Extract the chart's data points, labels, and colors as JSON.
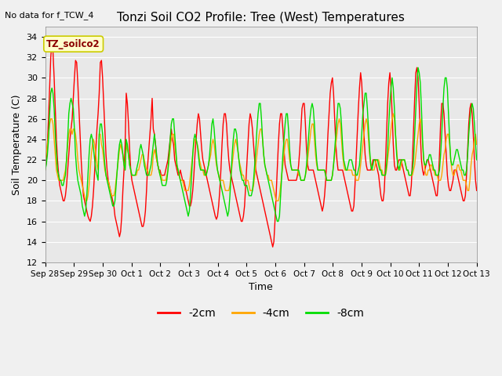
{
  "title": "Tonzi Soil CO2 Profile: Tree (West) Temperatures",
  "no_data_label": "No data for f_TCW_4",
  "ylabel": "Soil Temperature (C)",
  "xlabel": "Time",
  "legend_label": "TZ_soilco2",
  "ylim": [
    12,
    35
  ],
  "yticks": [
    12,
    14,
    16,
    18,
    20,
    22,
    24,
    26,
    28,
    30,
    32,
    34
  ],
  "bg_color": "#e8e8e8",
  "plot_bg": "#ebebeb",
  "line_colors": {
    "-2cm": "#ff0000",
    "-4cm": "#ffa500",
    "-8cm": "#00dd00"
  },
  "x_tick_labels": [
    "Sep 28",
    "Sep 29",
    "Sep 30",
    "Oct 1",
    "Oct 2",
    "Oct 3",
    "Oct 4",
    "Oct 5",
    "Oct 6",
    "Oct 7",
    "Oct 8",
    "Oct 9",
    "Oct 10",
    "Oct 11",
    "Oct 12",
    "Oct 13"
  ],
  "x_tick_positions": [
    0,
    1,
    2,
    3,
    4,
    5,
    6,
    7,
    8,
    9,
    10,
    11,
    12,
    13,
    14,
    15
  ],
  "num_days": 15,
  "samples_per_day": 24,
  "series_2cm": [
    21.0,
    21.8,
    23.5,
    26.0,
    29.0,
    32.0,
    33.5,
    32.5,
    30.0,
    27.0,
    24.0,
    22.0,
    20.5,
    19.5,
    19.0,
    18.5,
    18.0,
    18.0,
    18.5,
    19.5,
    21.0,
    22.5,
    24.0,
    25.0,
    26.0,
    28.0,
    30.0,
    31.7,
    31.5,
    29.5,
    27.0,
    24.5,
    22.0,
    20.0,
    18.5,
    18.0,
    17.5,
    17.0,
    16.5,
    16.2,
    16.0,
    16.5,
    17.5,
    19.0,
    21.0,
    23.0,
    25.0,
    26.5,
    28.5,
    31.5,
    31.7,
    30.0,
    27.5,
    25.0,
    22.5,
    21.0,
    20.0,
    19.5,
    19.0,
    18.5,
    18.0,
    17.5,
    16.5,
    16.0,
    15.5,
    15.0,
    14.5,
    15.0,
    16.5,
    19.0,
    21.0,
    23.5,
    28.5,
    27.5,
    25.5,
    23.0,
    21.0,
    20.0,
    19.5,
    19.0,
    18.5,
    18.0,
    17.5,
    17.0,
    16.5,
    16.0,
    15.5,
    15.5,
    16.0,
    17.0,
    19.0,
    21.5,
    23.0,
    24.5,
    26.0,
    28.0,
    25.0,
    24.5,
    23.5,
    22.0,
    21.5,
    21.0,
    21.0,
    20.5,
    20.5,
    20.5,
    20.5,
    21.0,
    21.5,
    22.0,
    23.0,
    24.0,
    25.0,
    24.0,
    23.5,
    22.0,
    21.5,
    21.0,
    20.5,
    20.5,
    21.0,
    20.5,
    20.0,
    20.0,
    19.5,
    19.0,
    18.5,
    18.0,
    17.5,
    17.5,
    18.0,
    19.0,
    20.5,
    22.5,
    24.0,
    25.5,
    26.5,
    26.0,
    24.5,
    23.0,
    22.0,
    21.5,
    21.0,
    20.5,
    20.0,
    19.5,
    19.0,
    18.5,
    18.0,
    17.5,
    17.0,
    16.5,
    16.2,
    16.5,
    17.5,
    19.0,
    21.0,
    23.5,
    25.5,
    26.5,
    26.5,
    25.5,
    23.5,
    22.0,
    21.0,
    20.5,
    20.0,
    19.5,
    19.0,
    18.5,
    18.0,
    17.5,
    17.0,
    16.5,
    16.0,
    16.0,
    16.5,
    17.5,
    19.5,
    21.5,
    23.5,
    25.5,
    26.5,
    26.0,
    25.0,
    23.5,
    22.0,
    21.0,
    20.5,
    20.0,
    19.5,
    19.0,
    18.5,
    18.0,
    17.5,
    17.0,
    16.5,
    16.0,
    15.5,
    15.0,
    14.5,
    14.0,
    13.5,
    14.0,
    16.0,
    18.5,
    21.0,
    23.5,
    25.5,
    26.5,
    26.5,
    25.0,
    23.0,
    21.5,
    21.0,
    20.5,
    20.0,
    20.0,
    20.0,
    20.0,
    20.0,
    20.0,
    20.0,
    20.0,
    20.5,
    21.5,
    23.0,
    25.0,
    27.0,
    27.5,
    27.5,
    25.5,
    23.0,
    21.5,
    21.0,
    21.0,
    21.0,
    21.0,
    21.0,
    20.5,
    20.0,
    19.5,
    19.0,
    18.5,
    18.0,
    17.5,
    17.0,
    17.5,
    18.5,
    20.0,
    22.0,
    24.5,
    26.5,
    28.5,
    29.5,
    30.0,
    28.5,
    26.0,
    23.5,
    22.0,
    21.0,
    21.0,
    21.0,
    21.0,
    21.0,
    20.5,
    20.0,
    19.5,
    19.0,
    18.5,
    18.0,
    17.5,
    17.0,
    17.0,
    17.5,
    19.5,
    22.0,
    24.5,
    27.0,
    29.0,
    30.5,
    29.5,
    27.0,
    24.5,
    22.5,
    21.5,
    21.0,
    21.0,
    21.0,
    21.0,
    21.5,
    22.0,
    22.0,
    22.0,
    21.5,
    21.0,
    20.5,
    19.5,
    18.5,
    18.0,
    18.0,
    19.0,
    21.5,
    24.5,
    27.5,
    29.5,
    30.5,
    29.0,
    26.5,
    23.5,
    21.5,
    21.0,
    21.0,
    21.5,
    22.0,
    22.0,
    22.0,
    21.5,
    21.0,
    20.5,
    20.0,
    19.5,
    19.0,
    18.5,
    18.5,
    19.5,
    22.0,
    25.0,
    28.0,
    30.5,
    31.0,
    30.0,
    27.5,
    24.5,
    22.0,
    21.0,
    20.5,
    21.0,
    21.5,
    22.0,
    22.0,
    21.5,
    21.0,
    20.5,
    20.0,
    19.5,
    19.0,
    18.5,
    18.5,
    20.0,
    22.5,
    25.5,
    27.5,
    27.5,
    26.5,
    24.5,
    22.5,
    20.5,
    19.5,
    19.0,
    19.0,
    19.5,
    20.0,
    21.0,
    21.0,
    21.0,
    20.5,
    20.0,
    19.5,
    19.0,
    18.5,
    18.0,
    18.0,
    18.5,
    20.5,
    23.0,
    25.5,
    27.0,
    27.5,
    26.5,
    24.5,
    22.0,
    20.0,
    19.0
  ],
  "series_4cm": [
    22.0,
    22.5,
    23.5,
    24.5,
    25.5,
    26.0,
    26.0,
    25.5,
    24.0,
    22.5,
    21.0,
    20.5,
    20.0,
    20.0,
    20.0,
    20.0,
    20.0,
    20.5,
    21.0,
    22.0,
    23.5,
    24.5,
    25.0,
    25.0,
    24.5,
    25.0,
    25.0,
    24.5,
    23.5,
    22.0,
    21.0,
    20.5,
    20.0,
    19.5,
    19.0,
    18.5,
    18.0,
    18.0,
    18.5,
    19.5,
    21.0,
    22.5,
    23.5,
    24.0,
    23.5,
    22.5,
    21.5,
    21.0,
    24.5,
    24.5,
    23.5,
    23.0,
    22.0,
    21.0,
    20.5,
    20.0,
    20.0,
    19.5,
    19.0,
    18.5,
    18.5,
    18.5,
    19.0,
    20.0,
    21.0,
    22.0,
    23.0,
    23.5,
    23.0,
    22.5,
    21.5,
    21.0,
    23.5,
    23.0,
    22.5,
    21.5,
    21.0,
    20.5,
    20.5,
    20.5,
    20.5,
    20.5,
    21.0,
    21.0,
    21.5,
    22.0,
    22.5,
    22.5,
    22.0,
    21.5,
    21.0,
    21.0,
    20.5,
    20.5,
    20.5,
    21.0,
    22.5,
    23.0,
    22.5,
    22.0,
    21.5,
    21.0,
    20.5,
    20.5,
    20.0,
    20.0,
    20.0,
    20.0,
    20.5,
    21.0,
    22.0,
    23.0,
    24.0,
    24.5,
    24.5,
    23.5,
    22.5,
    21.5,
    21.0,
    20.5,
    20.0,
    20.0,
    20.0,
    19.5,
    19.0,
    19.0,
    19.0,
    19.0,
    19.5,
    20.5,
    21.5,
    22.5,
    23.5,
    24.0,
    24.0,
    23.5,
    23.0,
    22.0,
    21.5,
    21.0,
    21.0,
    20.5,
    20.5,
    20.5,
    21.0,
    21.5,
    22.0,
    22.5,
    23.5,
    24.0,
    23.5,
    22.5,
    21.5,
    21.0,
    20.5,
    20.0,
    20.0,
    20.0,
    20.0,
    19.5,
    19.0,
    19.0,
    19.0,
    19.0,
    19.5,
    20.5,
    21.5,
    22.5,
    23.5,
    24.0,
    23.5,
    23.0,
    22.0,
    21.5,
    21.0,
    20.5,
    20.5,
    20.0,
    20.0,
    20.0,
    20.0,
    19.5,
    19.0,
    19.0,
    19.0,
    19.5,
    20.5,
    21.5,
    22.5,
    23.5,
    24.5,
    25.0,
    25.0,
    24.0,
    22.5,
    21.5,
    21.0,
    20.5,
    20.5,
    20.0,
    20.0,
    20.0,
    19.5,
    19.0,
    18.5,
    18.0,
    18.0,
    18.0,
    18.5,
    19.5,
    20.5,
    21.5,
    22.5,
    23.5,
    24.0,
    24.0,
    23.0,
    22.0,
    21.5,
    21.0,
    21.0,
    21.0,
    21.0,
    21.0,
    21.0,
    20.5,
    20.5,
    20.0,
    20.0,
    20.0,
    20.0,
    20.5,
    21.0,
    22.0,
    23.0,
    24.0,
    25.0,
    25.5,
    25.5,
    24.0,
    22.5,
    21.5,
    21.0,
    21.0,
    21.0,
    21.0,
    21.0,
    21.0,
    21.0,
    20.5,
    20.0,
    20.0,
    20.0,
    20.0,
    20.0,
    20.5,
    21.5,
    22.5,
    23.5,
    24.5,
    25.5,
    26.0,
    25.5,
    24.0,
    22.5,
    21.5,
    21.0,
    21.0,
    21.0,
    21.0,
    21.0,
    21.0,
    21.0,
    20.5,
    20.5,
    20.5,
    20.0,
    20.0,
    20.0,
    20.5,
    21.5,
    22.5,
    23.5,
    24.5,
    25.5,
    26.0,
    25.5,
    24.0,
    22.5,
    21.5,
    21.0,
    21.0,
    21.0,
    21.5,
    22.0,
    22.0,
    22.0,
    21.5,
    21.0,
    21.0,
    20.5,
    20.5,
    20.5,
    21.0,
    22.0,
    23.0,
    24.0,
    25.0,
    26.0,
    26.5,
    26.0,
    24.5,
    23.0,
    21.5,
    21.0,
    21.0,
    21.5,
    22.0,
    22.0,
    22.0,
    21.5,
    21.0,
    21.0,
    20.5,
    20.5,
    20.5,
    20.5,
    21.0,
    21.5,
    22.5,
    23.5,
    24.5,
    25.5,
    26.0,
    25.5,
    23.5,
    22.0,
    21.0,
    20.5,
    20.5,
    21.0,
    21.0,
    21.5,
    21.5,
    21.0,
    21.0,
    20.5,
    20.5,
    20.5,
    20.0,
    20.0,
    20.0,
    20.5,
    21.5,
    22.5,
    23.0,
    24.0,
    24.5,
    24.5,
    23.5,
    22.0,
    21.0,
    20.5,
    20.5,
    21.0,
    21.0,
    21.5,
    21.5,
    21.0,
    21.0,
    20.5,
    20.0,
    20.0,
    20.0,
    19.5,
    19.0,
    19.0,
    20.0,
    21.5,
    22.5,
    23.0,
    24.0,
    24.5,
    23.5
  ],
  "series_8cm": [
    21.0,
    21.5,
    22.5,
    24.0,
    26.5,
    28.5,
    29.0,
    28.5,
    27.0,
    24.5,
    22.5,
    21.0,
    20.5,
    20.0,
    20.0,
    19.5,
    19.5,
    20.0,
    20.5,
    22.0,
    24.0,
    26.5,
    27.5,
    28.0,
    27.5,
    27.0,
    25.0,
    22.5,
    21.0,
    20.0,
    19.5,
    19.0,
    18.5,
    17.5,
    17.0,
    16.5,
    17.0,
    18.5,
    20.5,
    22.5,
    24.0,
    24.5,
    24.0,
    23.0,
    22.0,
    21.0,
    20.5,
    20.0,
    24.5,
    25.5,
    25.5,
    24.5,
    23.0,
    21.5,
    20.5,
    20.0,
    19.5,
    19.0,
    18.5,
    18.0,
    17.5,
    17.5,
    18.0,
    19.5,
    21.0,
    22.5,
    23.5,
    24.0,
    23.5,
    22.5,
    21.5,
    21.0,
    24.0,
    23.5,
    22.5,
    21.5,
    21.0,
    20.5,
    20.5,
    20.5,
    20.5,
    21.0,
    21.5,
    22.0,
    23.0,
    23.5,
    23.0,
    22.5,
    21.5,
    21.0,
    20.5,
    20.5,
    20.5,
    21.0,
    21.5,
    22.5,
    23.5,
    24.5,
    23.5,
    22.5,
    21.5,
    21.0,
    20.5,
    20.0,
    19.5,
    19.5,
    19.5,
    19.5,
    20.0,
    21.0,
    22.5,
    24.0,
    25.5,
    26.0,
    26.0,
    24.5,
    23.0,
    21.5,
    21.0,
    20.5,
    20.0,
    19.5,
    19.0,
    18.5,
    18.0,
    17.5,
    17.0,
    16.5,
    17.0,
    18.5,
    20.5,
    22.5,
    24.0,
    24.5,
    24.0,
    23.5,
    22.5,
    21.5,
    21.0,
    21.0,
    21.0,
    21.0,
    20.5,
    20.5,
    21.0,
    21.5,
    22.5,
    24.0,
    25.5,
    26.0,
    25.0,
    23.5,
    22.0,
    21.0,
    20.5,
    20.0,
    19.5,
    19.0,
    18.5,
    18.0,
    17.5,
    17.0,
    16.5,
    17.0,
    18.5,
    20.5,
    22.5,
    24.0,
    25.0,
    25.0,
    24.5,
    23.0,
    22.0,
    21.0,
    20.5,
    20.0,
    20.0,
    19.5,
    19.5,
    19.5,
    19.0,
    18.5,
    18.5,
    18.5,
    19.0,
    20.0,
    21.5,
    23.0,
    25.0,
    26.5,
    27.5,
    27.5,
    26.0,
    24.0,
    22.5,
    21.5,
    21.0,
    20.5,
    20.0,
    19.5,
    19.0,
    18.5,
    18.0,
    17.5,
    17.0,
    16.5,
    16.0,
    16.0,
    16.5,
    18.5,
    20.5,
    22.5,
    24.0,
    25.5,
    26.5,
    26.5,
    25.0,
    23.0,
    21.5,
    21.0,
    21.0,
    21.0,
    21.0,
    21.0,
    21.0,
    21.0,
    20.5,
    20.0,
    20.0,
    20.0,
    20.0,
    20.5,
    21.5,
    23.0,
    24.5,
    26.0,
    27.0,
    27.5,
    27.0,
    25.5,
    23.5,
    22.0,
    21.0,
    21.0,
    21.0,
    21.0,
    21.0,
    21.0,
    21.0,
    20.5,
    20.0,
    20.0,
    20.0,
    20.0,
    20.0,
    20.5,
    21.5,
    23.0,
    24.5,
    26.0,
    27.5,
    27.5,
    27.0,
    25.5,
    23.5,
    22.0,
    21.5,
    21.0,
    21.0,
    21.5,
    22.0,
    22.0,
    22.0,
    21.5,
    21.0,
    21.0,
    20.5,
    20.5,
    21.0,
    21.5,
    23.0,
    24.5,
    26.5,
    27.5,
    28.5,
    28.5,
    27.0,
    25.0,
    23.0,
    21.5,
    21.0,
    21.5,
    22.0,
    22.0,
    22.0,
    22.0,
    21.5,
    21.0,
    21.0,
    20.5,
    20.5,
    20.5,
    20.5,
    21.5,
    23.0,
    25.5,
    27.5,
    29.0,
    30.0,
    29.0,
    27.0,
    24.5,
    22.5,
    21.5,
    21.0,
    21.5,
    22.0,
    22.0,
    22.0,
    22.0,
    21.5,
    21.0,
    21.0,
    20.5,
    20.5,
    20.5,
    21.0,
    22.0,
    24.5,
    27.0,
    29.5,
    31.0,
    30.5,
    29.5,
    27.0,
    24.0,
    22.0,
    21.5,
    21.5,
    22.0,
    22.0,
    22.5,
    22.5,
    22.0,
    21.5,
    21.0,
    21.0,
    20.5,
    20.5,
    20.5,
    21.0,
    22.5,
    24.5,
    27.0,
    29.0,
    30.0,
    30.0,
    29.0,
    26.5,
    24.0,
    22.0,
    21.5,
    21.5,
    22.0,
    22.5,
    23.0,
    23.0,
    22.5,
    22.0,
    21.5,
    21.0,
    21.0,
    20.5,
    20.5,
    21.0,
    22.5,
    24.5,
    26.0,
    27.0,
    27.5,
    27.0,
    25.5,
    23.5,
    22.0
  ]
}
